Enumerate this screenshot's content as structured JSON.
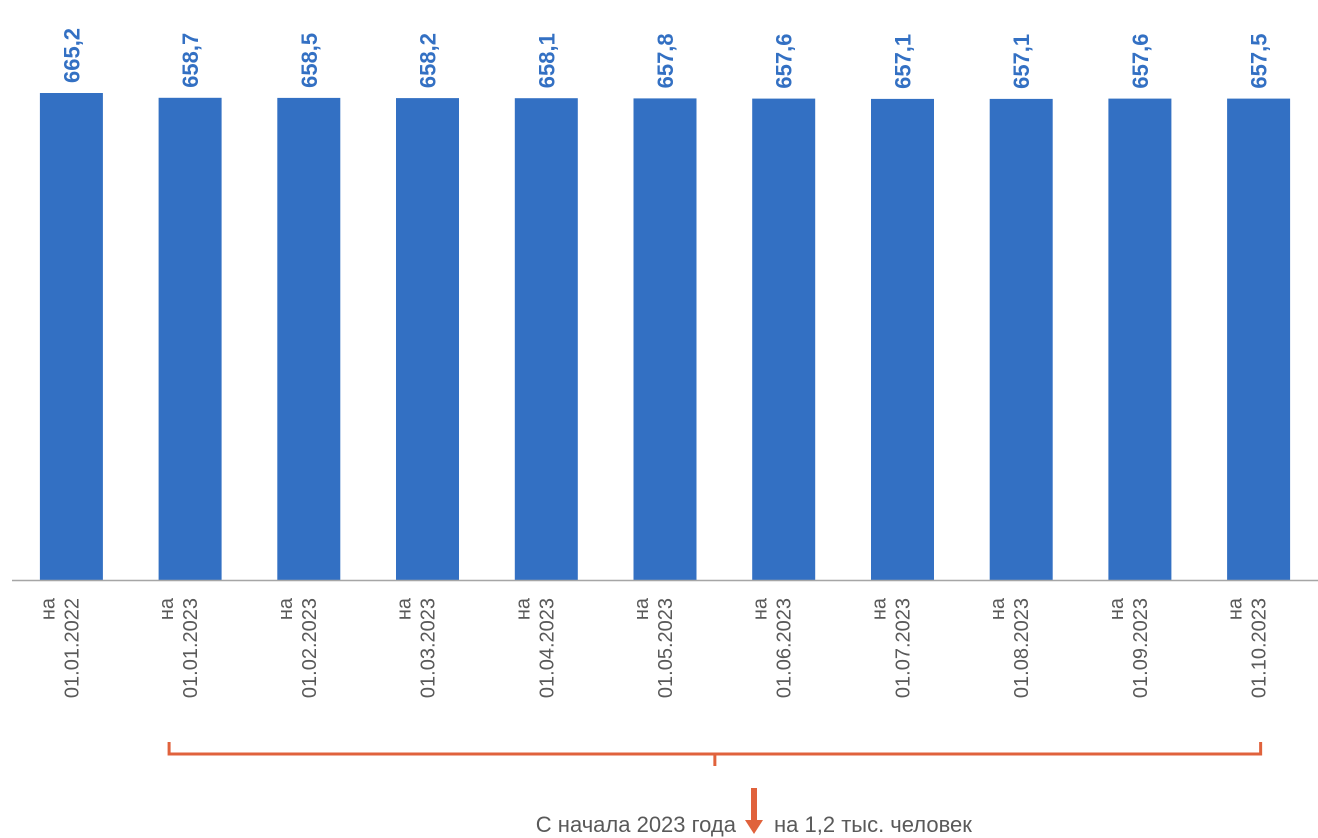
{
  "colors": {
    "bar": "#3370C3",
    "value_label": "#3370C3",
    "axis": "#A6A6A6",
    "tick_label": "#595959",
    "bracket": "#E0623C",
    "note_text": "#595959"
  },
  "chart_data": {
    "type": "bar",
    "categories": [
      "на 01.01.2022",
      "на 01.01.2023",
      "на 01.02.2023",
      "на 01.03.2023",
      "на 01.04.2023",
      "на 01.05.2023",
      "на 01.06.2023",
      "на 01.07.2023",
      "на 01.08.2023",
      "на 01.09.2023",
      "на 01.10.2023"
    ],
    "category_lines": [
      [
        "на",
        "01.01.2022"
      ],
      [
        "на",
        "01.01.2023"
      ],
      [
        "на",
        "01.02.2023"
      ],
      [
        "на",
        "01.03.2023"
      ],
      [
        "на",
        "01.04.2023"
      ],
      [
        "на",
        "01.05.2023"
      ],
      [
        "на",
        "01.06.2023"
      ],
      [
        "на",
        "01.07.2023"
      ],
      [
        "на",
        "01.08.2023"
      ],
      [
        "на",
        "01.09.2023"
      ],
      [
        "на",
        "01.10.2023"
      ]
    ],
    "values": [
      665.2,
      658.7,
      658.5,
      658.2,
      658.1,
      657.8,
      657.6,
      657.1,
      657.1,
      657.6,
      657.5
    ],
    "data_labels": [
      "665,2",
      "658,7",
      "658,5",
      "658,2",
      "658,1",
      "657,8",
      "657,6",
      "657,1",
      "657,1",
      "657,6",
      "657,5"
    ],
    "title": "",
    "xlabel": "",
    "ylabel": "",
    "ylim": [
      0,
      665.2
    ],
    "grid": false,
    "legend": "none"
  },
  "annotation": {
    "text_before": "С начала 2023 года",
    "text_after": "на 1,2 тыс. человек",
    "arrow": "down-arrow-icon"
  }
}
